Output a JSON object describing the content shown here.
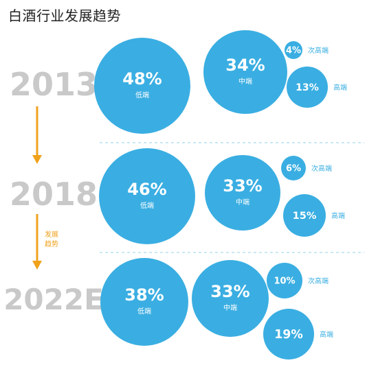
{
  "page": {
    "title": "白酒行业发展趋势"
  },
  "chart_data": {
    "type": "bubble",
    "title": "白酒行业发展趋势",
    "series_names": [
      "低端",
      "中端",
      "次高端",
      "高端"
    ],
    "trend_label_line1": "发展",
    "trend_label_line2": "趋势",
    "colors": {
      "bubble": "#3aaee2",
      "label": "#3aaee2",
      "year": "#c9c9c9",
      "arrow": "#f0a21c",
      "divider": "#a9d9ec",
      "bubble_text": "#ffffff"
    },
    "rows": [
      {
        "year": "2013",
        "segments": [
          {
            "name": "低端",
            "value": 48,
            "display": "48%",
            "label": "低端",
            "label_position": "inside"
          },
          {
            "name": "中端",
            "value": 34,
            "display": "34%",
            "label": "中端",
            "label_position": "inside"
          },
          {
            "name": "次高端",
            "value": 4,
            "display": "4%",
            "label": "次高端",
            "label_position": "right"
          },
          {
            "name": "高端",
            "value": 13,
            "display": "13%",
            "label": "高端",
            "label_position": "right"
          }
        ]
      },
      {
        "year": "2018",
        "segments": [
          {
            "name": "低端",
            "value": 46,
            "display": "46%",
            "label": "低端",
            "label_position": "inside"
          },
          {
            "name": "中端",
            "value": 33,
            "display": "33%",
            "label": "中端",
            "label_position": "inside"
          },
          {
            "name": "次高端",
            "value": 6,
            "display": "6%",
            "label": "次高端",
            "label_position": "right"
          },
          {
            "name": "高端",
            "value": 15,
            "display": "15%",
            "label": "高端",
            "label_position": "right"
          }
        ]
      },
      {
        "year": "2022E",
        "segments": [
          {
            "name": "低端",
            "value": 38,
            "display": "38%",
            "label": "低端",
            "label_position": "inside"
          },
          {
            "name": "中端",
            "value": 33,
            "display": "33%",
            "label": "中端",
            "label_position": "inside"
          },
          {
            "name": "次高端",
            "value": 10,
            "display": "10%",
            "label": "次高端",
            "label_position": "right"
          },
          {
            "name": "高端",
            "value": 19,
            "display": "19%",
            "label": "高端",
            "label_position": "right"
          }
        ]
      }
    ]
  }
}
